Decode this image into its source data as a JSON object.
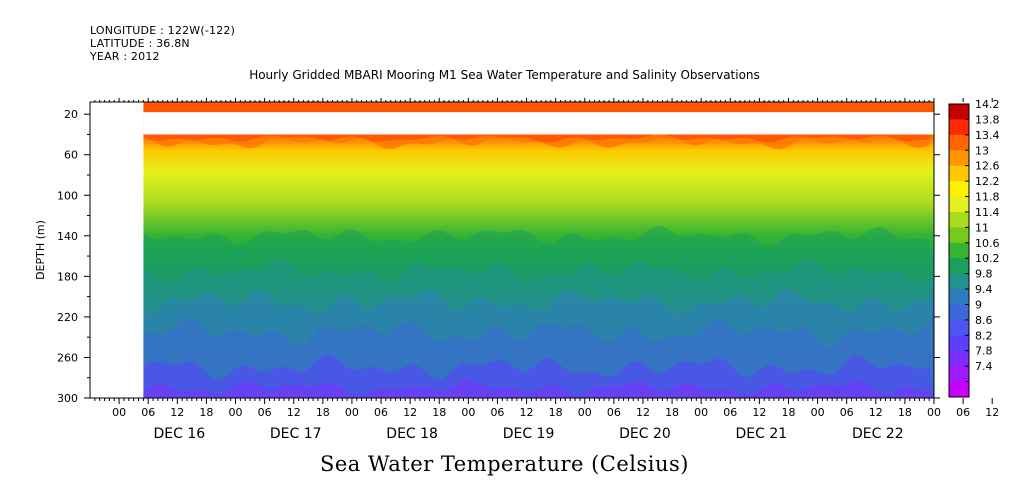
{
  "header": {
    "longitude": "LONGITUDE : 122W(-122)",
    "latitude": "LATITUDE : 36.8N",
    "year": "YEAR : 2012"
  },
  "chart_data": {
    "type": "heatmap",
    "title": "Hourly Gridded MBARI Mooring M1 Sea Water Temperature and Salinity Observations",
    "ylabel": "DEPTH (m)",
    "footer_label": "Sea Water Temperature (Celsius)",
    "y_reversed": true,
    "ylim": [
      300,
      8
    ],
    "y_ticks": [
      20,
      60,
      100,
      140,
      180,
      220,
      260,
      300
    ],
    "x_range_hours": [
      "DEC 15 18",
      "DEC 22 24"
    ],
    "hour_ticks": [
      "00",
      "06",
      "12",
      "18",
      "00",
      "06",
      "12",
      "18",
      "00",
      "06",
      "12",
      "18",
      "00",
      "06",
      "12",
      "18",
      "00",
      "06",
      "12",
      "18",
      "00",
      "06",
      "12",
      "18",
      "00",
      "06",
      "12",
      "18",
      "00",
      "06",
      "12",
      "18"
    ],
    "date_labels": [
      "DEC 16",
      "DEC 17",
      "DEC 18",
      "DEC 19",
      "DEC 20",
      "DEC 21",
      "DEC 22"
    ],
    "data_start": "DEC 16 05",
    "depth_layers": [
      {
        "depth_range": [
          10,
          18
        ],
        "temperature": 13.8
      },
      {
        "depth_range": [
          18,
          40
        ],
        "temperature": null
      },
      {
        "depth_range": [
          40,
          60
        ],
        "temperature": 12.2
      },
      {
        "depth_range": [
          60,
          100
        ],
        "temperature": 11.4
      },
      {
        "depth_range": [
          100,
          140
        ],
        "temperature": 10.6
      },
      {
        "depth_range": [
          140,
          180
        ],
        "temperature": 9.8
      },
      {
        "depth_range": [
          180,
          220
        ],
        "temperature": 9.0
      },
      {
        "depth_range": [
          220,
          260
        ],
        "temperature": 8.4
      },
      {
        "depth_range": [
          260,
          300
        ],
        "temperature": 7.8
      }
    ],
    "colorbar": {
      "levels": [
        7.4,
        7.8,
        8.2,
        8.6,
        9,
        9.4,
        9.8,
        10.2,
        10.6,
        11,
        11.4,
        11.8,
        12.2,
        12.6,
        13,
        13.4,
        13.8,
        14.2
      ],
      "colors": [
        "#c800ff",
        "#a019ff",
        "#7d2dff",
        "#5a41ff",
        "#4b55f0",
        "#3c69d7",
        "#2d7dbe",
        "#23918c",
        "#19a05a",
        "#37b432",
        "#78c81e",
        "#aadc1e",
        "#e6f01e",
        "#fff000",
        "#ffc800",
        "#ff9600",
        "#ff6400",
        "#ff2800",
        "#c80000"
      ]
    }
  }
}
